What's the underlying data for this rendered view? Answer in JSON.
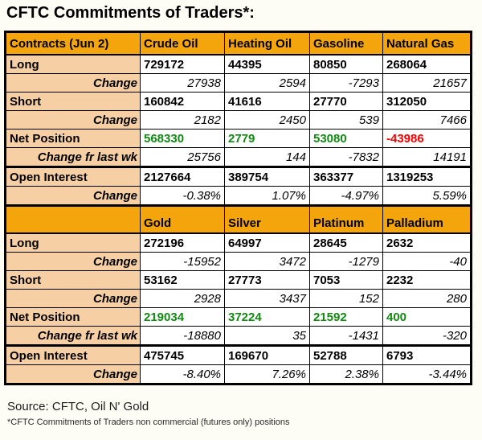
{
  "colors": {
    "header_bg": "#F3A50B",
    "label_bg": "#F7CFA5",
    "positive_value": "#128A12",
    "negative_value": "#FF0000",
    "grid_border": "#000000"
  },
  "chart_data": {
    "type": "table",
    "title": "CFTC Commitments of Traders*:",
    "sections": [
      {
        "columns": [
          "Contracts (Jun 2)",
          "Crude Oil",
          "Heating Oil",
          "Gasoline",
          "Natural Gas"
        ],
        "rows": [
          {
            "label": "Long",
            "style": "main",
            "thick_top": false,
            "values": [
              "729172",
              "44395",
              "80850",
              "268064"
            ]
          },
          {
            "label": "Change",
            "style": "change",
            "thick_top": false,
            "values": [
              "27938",
              "2594",
              "-7293",
              "21657"
            ]
          },
          {
            "label": "Short",
            "style": "main",
            "thick_top": false,
            "values": [
              "160842",
              "41616",
              "27770",
              "312050"
            ]
          },
          {
            "label": "Change",
            "style": "change",
            "thick_top": false,
            "values": [
              "2182",
              "2450",
              "539",
              "7466"
            ]
          },
          {
            "label": "Net Position",
            "style": "net",
            "thick_top": false,
            "values": [
              "568330",
              "2779",
              "53080",
              "-43986"
            ]
          },
          {
            "label": "Change fr last wk",
            "style": "change",
            "thick_top": false,
            "values": [
              "25756",
              "144",
              "-7832",
              "14191"
            ]
          },
          {
            "label": "Open Interest",
            "style": "main",
            "thick_top": true,
            "values": [
              "2127664",
              "389754",
              "363377",
              "1319253"
            ]
          },
          {
            "label": "Change",
            "style": "change",
            "thick_top": false,
            "values": [
              "-0.38%",
              "1.07%",
              "-4.97%",
              "5.59%"
            ]
          }
        ]
      },
      {
        "columns": [
          "",
          "Gold",
          "Silver",
          "Platinum",
          "Palladium"
        ],
        "rows": [
          {
            "label": "Long",
            "style": "main",
            "thick_top": false,
            "values": [
              "272196",
              "64997",
              "28645",
              "2632"
            ]
          },
          {
            "label": "Change",
            "style": "change",
            "thick_top": false,
            "values": [
              "-15952",
              "3472",
              "-1279",
              "-40"
            ]
          },
          {
            "label": "Short",
            "style": "main",
            "thick_top": false,
            "values": [
              "53162",
              "27773",
              "7053",
              "2232"
            ]
          },
          {
            "label": "Change",
            "style": "change",
            "thick_top": false,
            "values": [
              "2928",
              "3437",
              "152",
              "280"
            ]
          },
          {
            "label": "Net Position",
            "style": "net",
            "thick_top": false,
            "values": [
              "219034",
              "37224",
              "21592",
              "400"
            ]
          },
          {
            "label": "Change fr last wk",
            "style": "change",
            "thick_top": false,
            "values": [
              "-18880",
              "35",
              "-1431",
              "-320"
            ]
          },
          {
            "label": "Open Interest",
            "style": "main",
            "thick_top": true,
            "values": [
              "475745",
              "169670",
              "52788",
              "6793"
            ]
          },
          {
            "label": "Change",
            "style": "change",
            "thick_top": false,
            "values": [
              "-8.40%",
              "7.26%",
              "2.38%",
              "-3.44%"
            ]
          }
        ]
      }
    ]
  },
  "footer": {
    "source": "Source: CFTC, Oil N' Gold",
    "footnote": "*CFTC Commitments of Traders non commercial (futures only) positions"
  }
}
